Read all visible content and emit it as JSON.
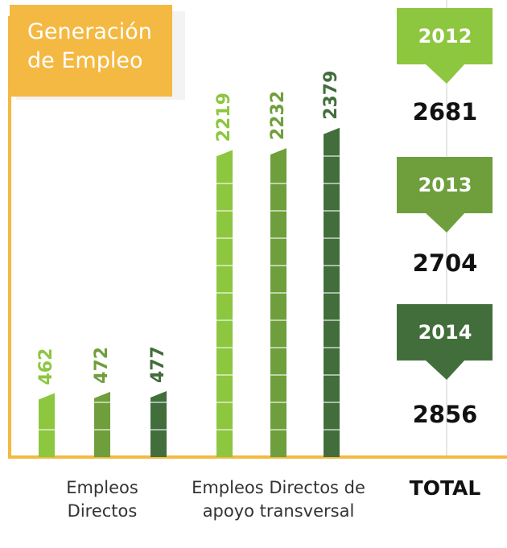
{
  "chart_data": {
    "type": "bar",
    "title": "Generación de Empleo",
    "categories": [
      "Empleos Directos",
      "Empleos Directos de apoyo transversal"
    ],
    "series": [
      {
        "name": "2012",
        "color": "#8dc63f",
        "values": [
          462,
          2219
        ]
      },
      {
        "name": "2013",
        "color": "#6f9f3c",
        "values": [
          472,
          2232
        ]
      },
      {
        "name": "2014",
        "color": "#426e3c",
        "values": [
          477,
          2379
        ]
      }
    ],
    "totals": {
      "label": "TOTAL",
      "values": [
        2681,
        2704,
        2856
      ]
    },
    "axis_color": "#f4b942"
  }
}
